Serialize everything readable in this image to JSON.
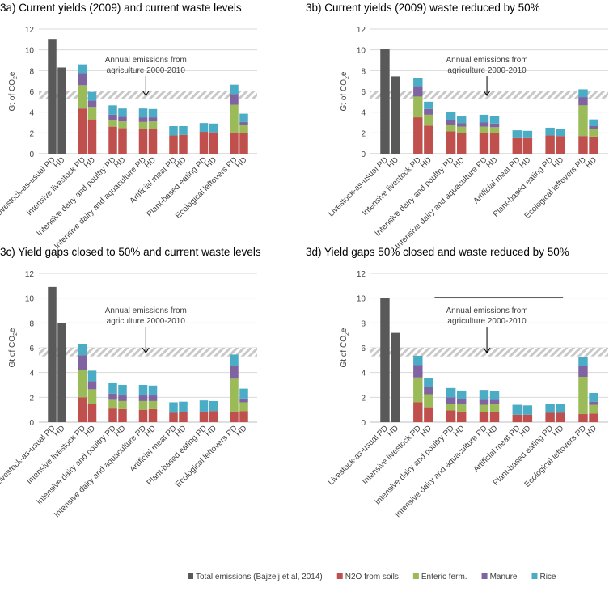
{
  "chart_data": {
    "type": "bar",
    "stacked": true,
    "colors": {
      "total": "#595959",
      "n2o": "#c0504d",
      "enteric": "#9bbb59",
      "manure": "#8064a2",
      "rice": "#4bacc6"
    },
    "legend": {
      "placement": "bottom",
      "items": [
        {
          "key": "total",
          "label": "Total emissions (Bajzelj et al, 2014)"
        },
        {
          "key": "n2o",
          "label": "N2O from soils"
        },
        {
          "key": "enteric",
          "label": "Enteric ferm."
        },
        {
          "key": "manure",
          "label": "Manure"
        },
        {
          "key": "rice",
          "label": "Rice"
        }
      ]
    },
    "categories": [
      "Livestock-as-usual PD",
      "HD",
      "Intensive livestock PD",
      "HD",
      "Intensive dairy and poultry PD",
      "HD",
      "Intensive dairy and aquaculture PD",
      "HD",
      "Artificial meat PD",
      "HD",
      "Plant-based eating PD",
      "HD",
      "Ecological leftovers PD",
      "HD"
    ],
    "ylabel": "Gt of CO2e",
    "ylabel_main": "Gt of CO",
    "ylabel_sub": "2",
    "ylabel_end": "e",
    "ylim": [
      0,
      12
    ],
    "yticks": [
      "0",
      "2",
      "4",
      "6",
      "8",
      "10",
      "12"
    ],
    "grid": true,
    "reference_band": {
      "range": [
        5.3,
        6.0
      ],
      "label_line1": "Annual emissions from",
      "label_line2": "agriculture 2000-2010"
    },
    "panels": [
      {
        "title": "3a) Current yields (2009) and current waste levels",
        "total": [
          11.05,
          8.3
        ],
        "n2o": [
          4.35,
          3.3,
          2.6,
          2.45,
          2.4,
          2.4,
          1.75,
          1.8,
          2.1,
          2.05,
          2.05,
          2.0
        ],
        "enteric": [
          2.25,
          1.2,
          0.65,
          0.65,
          0.65,
          0.7,
          0,
          0,
          0,
          0,
          2.65,
          0.75
        ],
        "manure": [
          1.15,
          0.6,
          0.5,
          0.45,
          0.45,
          0.4,
          0,
          0,
          0,
          0,
          1.05,
          0.3
        ],
        "rice": [
          0.85,
          0.85,
          0.9,
          0.8,
          0.85,
          0.8,
          0.9,
          0.85,
          0.85,
          0.85,
          0.9,
          0.8
        ]
      },
      {
        "title": "3b) Current yields (2009) waste reduced by 50%",
        "total": [
          10.05,
          7.45
        ],
        "n2o": [
          3.5,
          2.7,
          2.15,
          2.0,
          2.0,
          2.0,
          1.5,
          1.5,
          1.75,
          1.7,
          1.7,
          1.65
        ],
        "enteric": [
          2.0,
          1.05,
          0.6,
          0.6,
          0.6,
          0.55,
          0,
          0,
          0,
          0,
          2.95,
          0.7
        ],
        "manure": [
          1.0,
          0.55,
          0.45,
          0.35,
          0.4,
          0.35,
          0,
          0,
          0,
          0,
          0.8,
          0.3
        ],
        "rice": [
          0.8,
          0.7,
          0.8,
          0.7,
          0.75,
          0.75,
          0.75,
          0.7,
          0.75,
          0.7,
          0.75,
          0.65
        ]
      },
      {
        "title": "3c) Yield gaps closed to 50% and current waste levels",
        "total": [
          10.9,
          8.0
        ],
        "n2o": [
          2.0,
          1.5,
          1.1,
          1.05,
          1.0,
          1.05,
          0.75,
          0.8,
          0.85,
          0.9,
          0.85,
          0.9
        ],
        "enteric": [
          2.2,
          1.15,
          0.7,
          0.65,
          0.7,
          0.65,
          0,
          0,
          0,
          0,
          2.65,
          0.7
        ],
        "manure": [
          1.2,
          0.65,
          0.5,
          0.45,
          0.45,
          0.45,
          0,
          0,
          0,
          0,
          1.05,
          0.3
        ],
        "rice": [
          0.9,
          0.85,
          0.9,
          0.85,
          0.85,
          0.8,
          0.85,
          0.85,
          0.9,
          0.8,
          0.9,
          0.8
        ]
      },
      {
        "title": "3d) Yield gaps 50% closed and waste reduced by 50%",
        "total": [
          10.0,
          7.2
        ],
        "n2o": [
          1.6,
          1.2,
          0.95,
          0.85,
          0.8,
          0.85,
          0.6,
          0.6,
          0.75,
          0.75,
          0.65,
          0.7
        ],
        "enteric": [
          2.0,
          1.05,
          0.55,
          0.6,
          0.6,
          0.6,
          0,
          0,
          0,
          0,
          3.0,
          0.7
        ],
        "manure": [
          1.0,
          0.6,
          0.5,
          0.4,
          0.4,
          0.35,
          0,
          0,
          0,
          0,
          0.85,
          0.25
        ],
        "rice": [
          0.75,
          0.7,
          0.75,
          0.7,
          0.8,
          0.7,
          0.8,
          0.75,
          0.7,
          0.7,
          0.75,
          0.7
        ]
      }
    ]
  }
}
